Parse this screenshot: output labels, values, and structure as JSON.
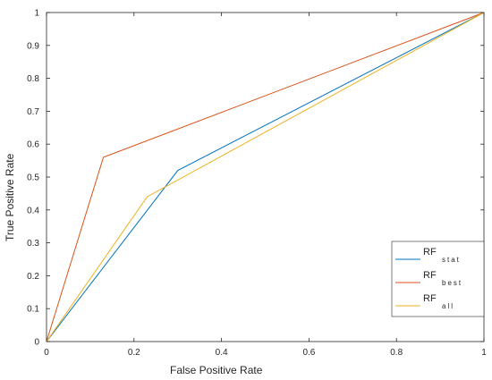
{
  "chart_data": {
    "type": "line",
    "title": "",
    "xlabel": "False Positive Rate",
    "ylabel": "True Positive Rate",
    "xlim": [
      0,
      1
    ],
    "ylim": [
      0,
      1
    ],
    "xticks": [
      "0",
      "0.2",
      "0.4",
      "0.6",
      "0.8",
      "1"
    ],
    "yticks": [
      "0",
      "0.1",
      "0.2",
      "0.3",
      "0.4",
      "0.5",
      "0.6",
      "0.7",
      "0.8",
      "0.9",
      "1"
    ],
    "grid": false,
    "legend_position": "bottom-right",
    "series": [
      {
        "main": "RF",
        "sub": "stat",
        "color": "#0072BD",
        "points": [
          [
            0,
            0
          ],
          [
            0.3,
            0.52
          ],
          [
            1,
            1
          ]
        ]
      },
      {
        "main": "RF",
        "sub": "best",
        "color": "#D95319",
        "points": [
          [
            0,
            0
          ],
          [
            0.13,
            0.56
          ],
          [
            1,
            1
          ]
        ]
      },
      {
        "main": "RF",
        "sub": "all",
        "color": "#EDB120",
        "points": [
          [
            0,
            0
          ],
          [
            0.23,
            0.44
          ],
          [
            1,
            1
          ]
        ]
      }
    ]
  }
}
